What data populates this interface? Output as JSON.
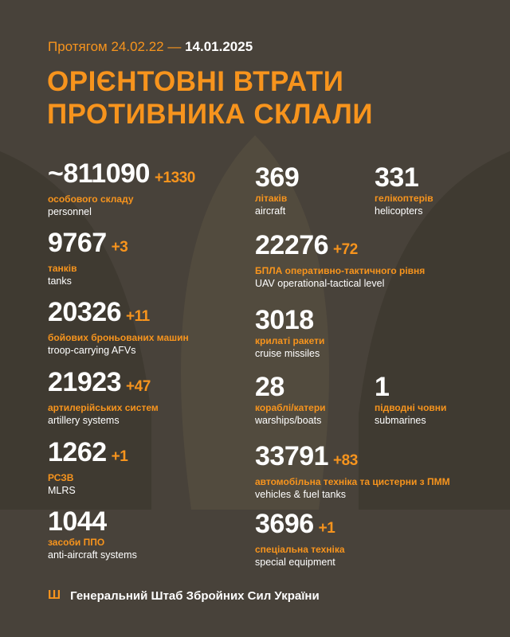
{
  "header": {
    "period_prefix": "Протягом 24.02.22 —",
    "period_date": "14.01.2025",
    "title_line1": "ОРІЄНТОВНІ ВТРАТИ",
    "title_line2": "ПРОТИВНИКА СКЛАЛИ"
  },
  "colors": {
    "background": "#48423a",
    "accent": "#f7941d",
    "text": "#ffffff"
  },
  "stats": [
    {
      "value": "~811090",
      "delta": "+1330",
      "ua": "особового складу",
      "en": "personnel"
    },
    {
      "value": "369",
      "delta": "",
      "ua": "літаків",
      "en": "aircraft"
    },
    {
      "value": "331",
      "delta": "",
      "ua": "гелікоптерів",
      "en": "helicopters"
    },
    {
      "value": "9767",
      "delta": "+3",
      "ua": "танків",
      "en": "tanks"
    },
    {
      "value": "22276",
      "delta": "+72",
      "ua": "БПЛА оперативно-тактичного рівня",
      "en": "UAV operational-tactical level"
    },
    {
      "value": "20326",
      "delta": "+11",
      "ua": "бойових броньованих машин",
      "en": "troop-carrying AFVs"
    },
    {
      "value": "3018",
      "delta": "",
      "ua": "крилаті ракети",
      "en": "cruise missiles"
    },
    {
      "value": "21923",
      "delta": "+47",
      "ua": "артилерійських систем",
      "en": "artillery systems"
    },
    {
      "value": "28",
      "delta": "",
      "ua": "кораблі/катери",
      "en": "warships/boats"
    },
    {
      "value": "1",
      "delta": "",
      "ua": "підводні човни",
      "en": "submarines"
    },
    {
      "value": "1262",
      "delta": "+1",
      "ua": "РСЗВ",
      "en": "MLRS"
    },
    {
      "value": "33791",
      "delta": "+83",
      "ua": "автомобільна техніка та цистерни з ПММ",
      "en": "vehicles & fuel tanks"
    },
    {
      "value": "1044",
      "delta": "",
      "ua": "засоби ППО",
      "en": "anti-aircraft systems"
    },
    {
      "value": "3696",
      "delta": "+1",
      "ua": "спеціальна техніка",
      "en": "special equipment"
    }
  ],
  "footer": {
    "icon": "trident-icon",
    "text": "Генеральний Штаб Збройних Сил України"
  }
}
